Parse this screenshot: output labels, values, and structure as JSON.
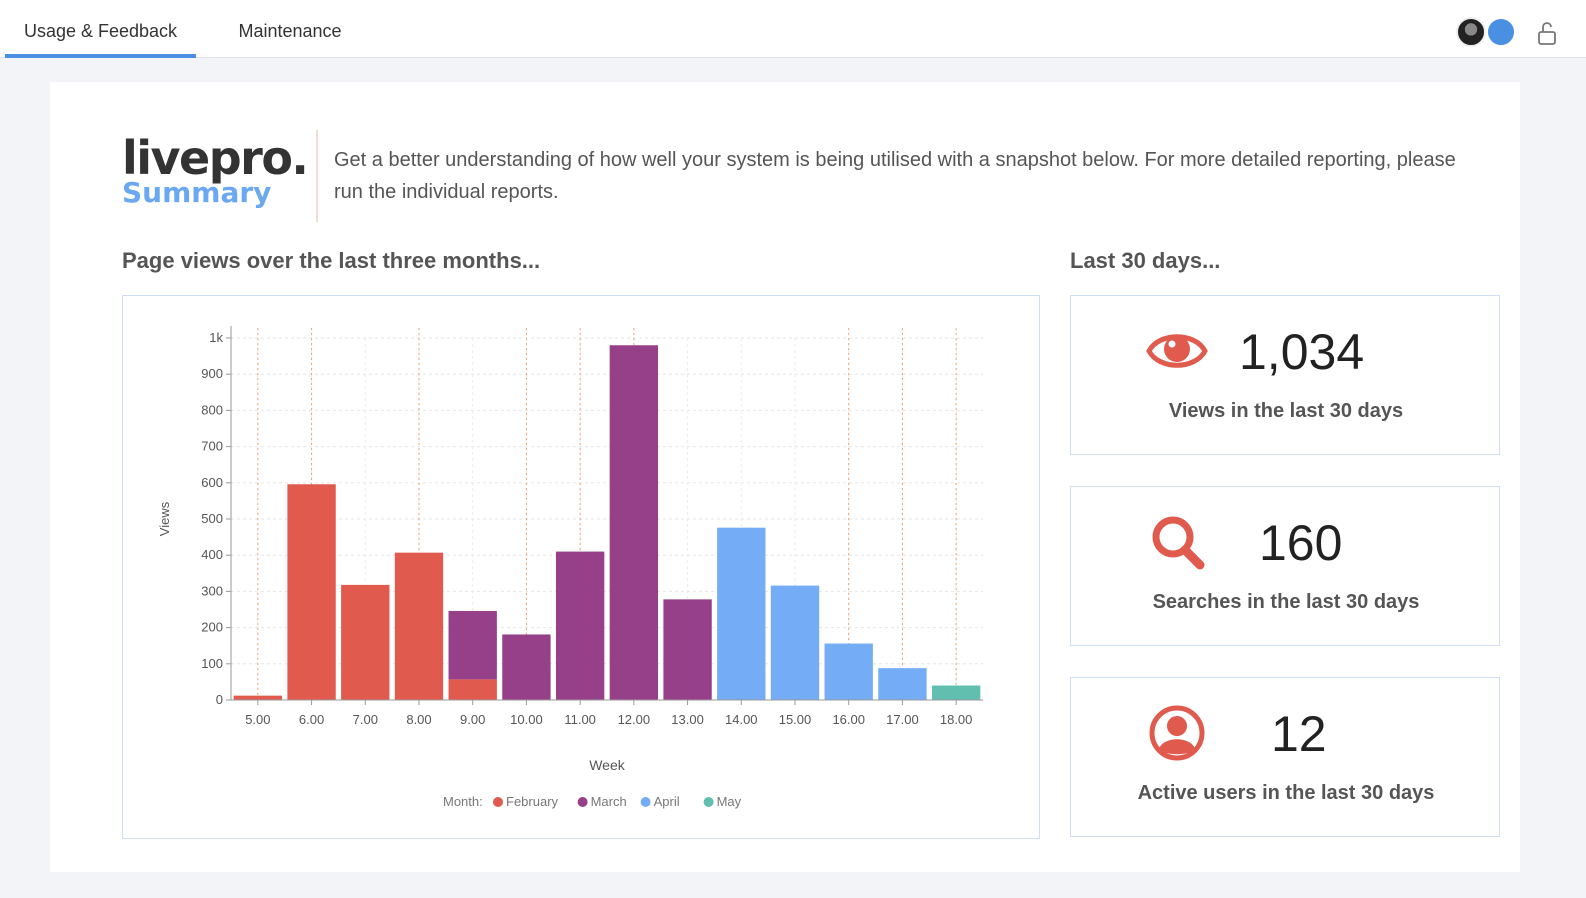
{
  "tabs": [
    {
      "label": "Usage & Feedback",
      "active": true
    },
    {
      "label": "Maintenance",
      "active": false
    }
  ],
  "header": {
    "logo": "livepro.",
    "logo_sub": "Summary"
  },
  "intro_text": "Get a better understanding of how well your system is being utilised with a snapshot below. For more detailed reporting, please run the individual reports.",
  "chart_section_title": "Page views over the last three months...",
  "stats_section_title": "Last 30 days...",
  "colors": {
    "accent": "#4a90e2",
    "february": "#e05a4e",
    "march": "#964089",
    "april": "#74acf6",
    "may": "#60bfae",
    "icon": "#e05a4e"
  },
  "stats": [
    {
      "icon": "eye-icon",
      "value": "1,034",
      "label": "Views in the last 30 days"
    },
    {
      "icon": "search-icon",
      "value": "160",
      "label": "Searches in the last 30 days"
    },
    {
      "icon": "user-icon",
      "value": "12",
      "label": "Active users in the last 30 days"
    }
  ],
  "chart_data": {
    "type": "bar",
    "stacked": true,
    "xlabel": "Week",
    "ylabel": "Views",
    "ylim": [
      0,
      1000
    ],
    "yticks": [
      "0",
      "100",
      "200",
      "300",
      "400",
      "500",
      "600",
      "700",
      "800",
      "900",
      "1k"
    ],
    "categories": [
      "5.00",
      "6.00",
      "7.00",
      "8.00",
      "9.00",
      "10.00",
      "11.00",
      "12.00",
      "13.00",
      "14.00",
      "15.00",
      "16.00",
      "17.00",
      "18.00"
    ],
    "series": [
      {
        "name": "February",
        "color": "#e05a4e",
        "values": [
          12,
          596,
          318,
          407,
          57,
          0,
          0,
          0,
          0,
          0,
          0,
          0,
          0,
          0
        ]
      },
      {
        "name": "March",
        "color": "#964089",
        "values": [
          0,
          0,
          0,
          0,
          189,
          181,
          410,
          980,
          278,
          0,
          0,
          0,
          0,
          0
        ]
      },
      {
        "name": "April",
        "color": "#74acf6",
        "values": [
          0,
          0,
          0,
          0,
          0,
          0,
          0,
          0,
          0,
          476,
          316,
          156,
          88,
          0
        ]
      },
      {
        "name": "May",
        "color": "#60bfae",
        "values": [
          0,
          0,
          0,
          0,
          0,
          0,
          0,
          0,
          0,
          0,
          0,
          0,
          0,
          40
        ]
      }
    ],
    "legend_title": "Month:",
    "legend_position": "bottom-center",
    "grid": true,
    "marker_weeks": [
      "5.00",
      "6.00",
      "8.00",
      "10.00",
      "11.00",
      "12.00",
      "16.00",
      "17.00",
      "18.00"
    ]
  }
}
